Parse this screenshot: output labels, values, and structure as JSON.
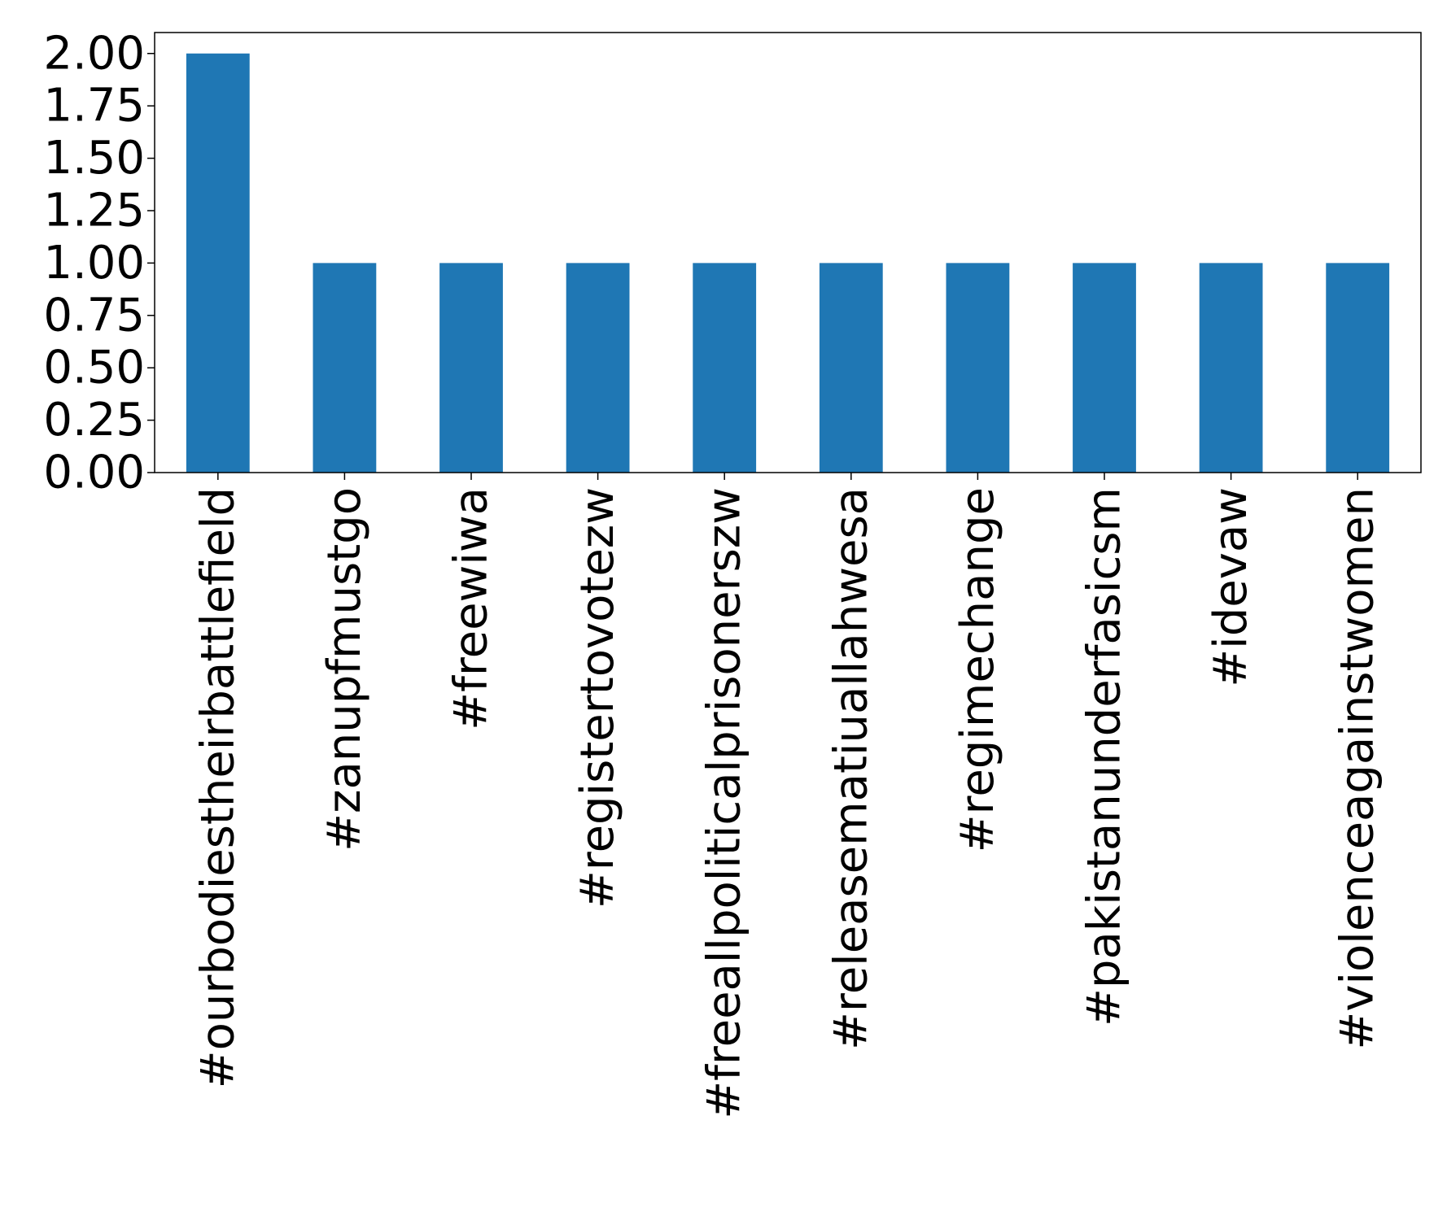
{
  "chart_data": {
    "type": "bar",
    "title": "",
    "xlabel": "",
    "ylabel": "",
    "categories": [
      "#ourbodiestheirbattlefield",
      "#zanupfmustgo",
      "#freewiwa",
      "#registertovotezw",
      "#freeallpoliticalprisonerszw",
      "#releasematiuallahwesa",
      "#regimechange",
      "#pakistanunderfasicsm",
      "#idevaw",
      "#violenceagainstwomen"
    ],
    "values": [
      2,
      1,
      1,
      1,
      1,
      1,
      1,
      1,
      1,
      1
    ],
    "ylim": [
      0,
      2.1
    ],
    "yticks": [
      "0.00",
      "0.25",
      "0.50",
      "0.75",
      "1.00",
      "1.25",
      "1.50",
      "1.75",
      "2.00"
    ],
    "grid": false,
    "legend": "none",
    "bar_color": "#1f77b4"
  }
}
